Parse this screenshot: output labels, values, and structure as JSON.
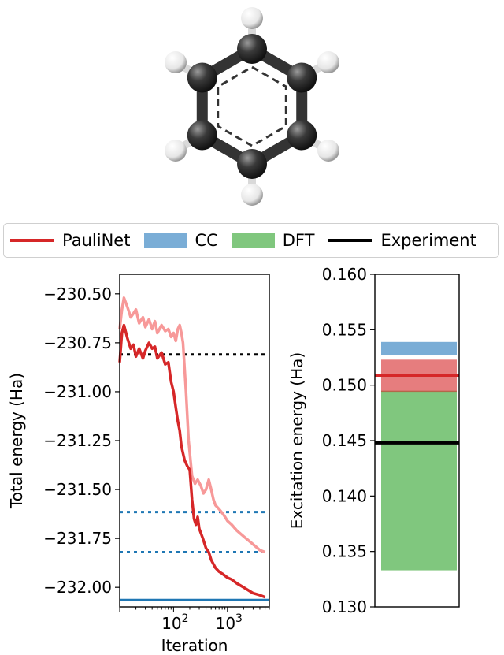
{
  "legend": {
    "items": [
      {
        "label": "PauliNet",
        "kind": "line",
        "color": "#d62728"
      },
      {
        "label": "CC",
        "kind": "patch",
        "color": "#7aadd6"
      },
      {
        "label": "DFT",
        "kind": "patch",
        "color": "#80c77e"
      },
      {
        "label": "Experiment",
        "kind": "line",
        "color": "#000000"
      }
    ]
  },
  "molecule": {
    "name": "benzene",
    "carbon_color": "#3a3a3a",
    "hydrogen_color": "#ffffff"
  },
  "chart_data": [
    {
      "type": "line",
      "xlabel": "Iteration",
      "ylabel": "Total energy (Ha)",
      "xscale": "log",
      "xlim": [
        10,
        6000
      ],
      "ylim": [
        -232.1,
        -230.4
      ],
      "yticks": [
        -230.5,
        -230.75,
        -231.0,
        -231.25,
        -231.5,
        -231.75,
        -232.0
      ],
      "ytick_labels": [
        "−230.50",
        "−230.75",
        "−231.00",
        "−231.25",
        "−231.50",
        "−231.75",
        "−232.00"
      ],
      "xticks": [
        {
          "value": 100,
          "base": "10",
          "exp": "2"
        },
        {
          "value": 1000,
          "base": "10",
          "exp": "3"
        }
      ],
      "series": [
        {
          "color": "#f79999",
          "x": [
            10,
            11,
            12,
            14,
            16,
            18,
            20,
            23,
            27,
            30,
            35,
            40,
            45,
            50,
            60,
            70,
            80,
            90,
            100,
            110,
            120,
            130,
            140,
            150,
            170,
            190,
            220,
            250,
            280,
            320,
            360,
            400,
            450,
            500,
            550,
            600,
            700,
            800,
            900,
            1000,
            1200,
            1500,
            2000,
            3000,
            4000,
            5000
          ],
          "y": [
            -230.68,
            -230.58,
            -230.52,
            -230.57,
            -230.62,
            -230.6,
            -230.58,
            -230.65,
            -230.62,
            -230.67,
            -230.63,
            -230.68,
            -230.64,
            -230.7,
            -230.66,
            -230.69,
            -230.68,
            -230.72,
            -230.7,
            -230.74,
            -230.68,
            -230.66,
            -230.7,
            -230.75,
            -231.0,
            -231.25,
            -231.43,
            -231.47,
            -231.45,
            -231.48,
            -231.52,
            -231.5,
            -231.45,
            -231.5,
            -231.55,
            -231.58,
            -231.6,
            -231.62,
            -231.64,
            -231.66,
            -231.68,
            -231.71,
            -231.74,
            -231.78,
            -231.81,
            -231.82
          ]
        },
        {
          "color": "#d62728",
          "x": [
            10,
            11,
            12,
            14,
            16,
            18,
            20,
            23,
            27,
            30,
            35,
            40,
            45,
            50,
            60,
            70,
            80,
            90,
            100,
            110,
            120,
            130,
            140,
            160,
            180,
            200,
            220,
            240,
            260,
            280,
            300,
            350,
            400,
            450,
            500,
            600,
            700,
            800,
            1000,
            1200,
            1500,
            2000,
            3000,
            4000,
            5000
          ],
          "y": [
            -230.85,
            -230.7,
            -230.66,
            -230.73,
            -230.78,
            -230.76,
            -230.82,
            -230.78,
            -230.83,
            -230.79,
            -230.75,
            -230.78,
            -230.77,
            -230.83,
            -230.8,
            -230.86,
            -230.85,
            -230.95,
            -231.0,
            -231.08,
            -231.15,
            -231.2,
            -231.28,
            -231.35,
            -231.38,
            -231.4,
            -231.55,
            -231.65,
            -231.68,
            -231.64,
            -231.7,
            -231.75,
            -231.8,
            -231.82,
            -231.86,
            -231.9,
            -231.92,
            -231.93,
            -231.95,
            -231.96,
            -231.98,
            -232.0,
            -232.03,
            -232.04,
            -232.05
          ]
        }
      ],
      "reference_lines": [
        {
          "y": -230.81,
          "color": "#000000",
          "style": "dotted"
        },
        {
          "y": -231.615,
          "color": "#1f77b4",
          "style": "dotted"
        },
        {
          "y": -231.82,
          "color": "#1f77b4",
          "style": "dotted"
        },
        {
          "y": -232.065,
          "color": "#1f77b4",
          "style": "solid"
        }
      ],
      "grid": false
    },
    {
      "type": "bar",
      "ylabel": "Excitation energy (Ha)",
      "ylim": [
        0.13,
        0.16
      ],
      "yticks": [
        0.13,
        0.135,
        0.14,
        0.145,
        0.15,
        0.155,
        0.16
      ],
      "ytick_labels": [
        "0.130",
        "0.135",
        "0.140",
        "0.145",
        "0.150",
        "0.155",
        "0.160"
      ],
      "bands": [
        {
          "label": "DFT",
          "y0": 0.1333,
          "y1": 0.1495,
          "color": "#80c77e"
        },
        {
          "label": "CC",
          "y0": 0.1527,
          "y1": 0.1539,
          "color": "#7aadd6"
        },
        {
          "label": "PauliNet",
          "y0": 0.1494,
          "y1": 0.1523,
          "color": "#d62728",
          "opacity": 0.6
        }
      ],
      "lines": [
        {
          "label": "PauliNet",
          "y": 0.1509,
          "color": "#d62728"
        },
        {
          "label": "Experiment",
          "y": 0.1448,
          "color": "#000000"
        }
      ],
      "grid": false
    }
  ]
}
